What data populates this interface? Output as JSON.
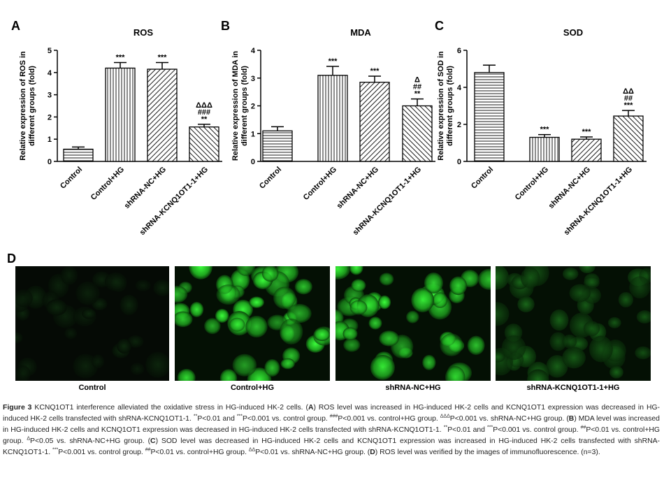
{
  "chart_data": [
    {
      "type": "bar",
      "panel": "A",
      "title": "ROS",
      "ylabel": [
        "Relative expression of ROS in",
        "different groups (fold)"
      ],
      "categories": [
        "Control",
        "Control+HG",
        "shRNA-NC+HG",
        "shRNA-KCNQ1OT1-1+HG"
      ],
      "values": [
        0.55,
        4.2,
        4.15,
        1.55
      ],
      "errors": [
        0.1,
        0.25,
        0.3,
        0.12
      ],
      "annotations": [
        [],
        [
          "***"
        ],
        [
          "***"
        ],
        [
          "ΔΔΔ",
          "###",
          "**"
        ]
      ],
      "patterns": [
        "horizontal",
        "vertical",
        "diag-down",
        "diag-up"
      ],
      "ylim": [
        0,
        5
      ],
      "yticks": [
        0,
        1,
        2,
        3,
        4,
        5
      ]
    },
    {
      "type": "bar",
      "panel": "B",
      "title": "MDA",
      "ylabel": [
        "Relative expression of MDA in",
        "different groups (fold)"
      ],
      "categories": [
        "Control",
        "Control+HG",
        "shRNA-NC+HG",
        "shRNA-KCNQ1OT1-1+HG"
      ],
      "values": [
        1.1,
        3.1,
        2.85,
        2.0
      ],
      "errors": [
        0.15,
        0.32,
        0.22,
        0.25
      ],
      "annotations": [
        [],
        [
          "***"
        ],
        [
          "***"
        ],
        [
          "Δ",
          "##",
          "**"
        ]
      ],
      "patterns": [
        "horizontal",
        "vertical",
        "diag-down",
        "diag-up"
      ],
      "ylim": [
        0,
        4
      ],
      "yticks": [
        0,
        1,
        2,
        3,
        4
      ]
    },
    {
      "type": "bar",
      "panel": "C",
      "title": "SOD",
      "ylabel": [
        "Relative expression of SOD in",
        "different groups (fold)"
      ],
      "categories": [
        "Control",
        "Control+HG",
        "shRNA-NC+HG",
        "shRNA-KCNQ1OT1-1+HG"
      ],
      "values": [
        4.8,
        1.3,
        1.2,
        2.45
      ],
      "errors": [
        0.4,
        0.15,
        0.12,
        0.3
      ],
      "annotations": [
        [],
        [
          "***"
        ],
        [
          "***"
        ],
        [
          "ΔΔ",
          "##",
          "***"
        ]
      ],
      "patterns": [
        "horizontal",
        "vertical",
        "diag-down",
        "diag-up"
      ],
      "ylim": [
        0,
        6
      ],
      "yticks": [
        0,
        2,
        4,
        6
      ]
    }
  ],
  "panel_d": {
    "panel": "D",
    "labels": [
      "Control",
      "Control+HG",
      "shRNA-NC+HG",
      "shRNA-KCNQ1OT1-1+HG"
    ]
  },
  "caption": [
    "Figure 3",
    " KCNQ1OT1 interference alleviated the oxidative stress in HG-induced HK-2 cells. (",
    "A",
    ") ROS level was increased in HG-induced HK-2 cells and KCNQ1OT1 expression was decreased in HG-induced HK-2 cells transfected with shRNA-KCNQ1OT1-1. ",
    "**",
    "P<0.01 and ",
    "***",
    "P<0.001 vs. control group. ",
    "###",
    "P<0.001 vs. control+HG group. ",
    "ΔΔΔ",
    "P<0.001 vs. shRNA-NC+HG group. (",
    "B",
    ") MDA level was increased in HG-induced HK-2 cells and KCNQ1OT1 expression was decreased in HG-induced HK-2 cells transfected with shRNA-KCNQ1OT1-1. ",
    "**",
    "P<0.01 and ",
    "***",
    "P<0.001 vs. control group. ",
    "##",
    "P<0.01 vs. control+HG group. ",
    "Δ",
    "P<0.05 vs. shRNA-NC+HG group. (",
    "C",
    ") SOD level was decreased in HG-induced HK-2 cells and KCNQ1OT1 expression was increased in HG-induced HK-2 cells transfected with shRNA-KCNQ1OT1-1. ",
    "***",
    "P<0.001 vs. control group. ",
    "##",
    "P<0.01 vs. control+HG group. ",
    "ΔΔ",
    "P<0.01 vs. shRNA-NC+HG group. (",
    "D",
    ") ROS level was verified by the images of immunofluorescence. (n=3)."
  ]
}
